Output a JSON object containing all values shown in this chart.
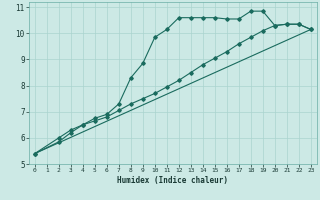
{
  "xlabel": "Humidex (Indice chaleur)",
  "xlim": [
    -0.5,
    23.5
  ],
  "ylim": [
    5,
    11.2
  ],
  "xticks": [
    0,
    1,
    2,
    3,
    4,
    5,
    6,
    7,
    8,
    9,
    10,
    11,
    12,
    13,
    14,
    15,
    16,
    17,
    18,
    19,
    20,
    21,
    22,
    23
  ],
  "yticks": [
    5,
    6,
    7,
    8,
    9,
    10,
    11
  ],
  "bg_color": "#cce9e5",
  "grid_color": "#aad4cf",
  "line_color": "#1a6b5e",
  "line1_x": [
    0,
    2,
    3,
    4,
    5,
    6,
    7,
    8,
    9,
    10,
    11,
    12,
    13,
    14,
    15,
    16,
    17,
    18,
    19,
    20,
    21,
    22,
    23
  ],
  "line1_y": [
    5.4,
    5.85,
    6.2,
    6.5,
    6.75,
    6.9,
    7.3,
    8.3,
    8.85,
    9.85,
    10.15,
    10.6,
    10.6,
    10.6,
    10.6,
    10.55,
    10.55,
    10.85,
    10.85,
    10.3,
    10.35,
    10.35,
    10.15
  ],
  "line2_x": [
    0,
    2,
    3,
    4,
    5,
    6,
    7,
    8,
    9,
    10,
    11,
    12,
    13,
    14,
    15,
    16,
    17,
    18,
    19,
    20,
    21,
    22,
    23
  ],
  "line2_y": [
    5.4,
    6.0,
    6.3,
    6.5,
    6.65,
    6.8,
    7.05,
    7.3,
    7.5,
    7.7,
    7.95,
    8.2,
    8.5,
    8.8,
    9.05,
    9.3,
    9.6,
    9.85,
    10.1,
    10.3,
    10.35,
    10.35,
    10.15
  ],
  "line3_x": [
    0,
    23
  ],
  "line3_y": [
    5.4,
    10.15
  ]
}
